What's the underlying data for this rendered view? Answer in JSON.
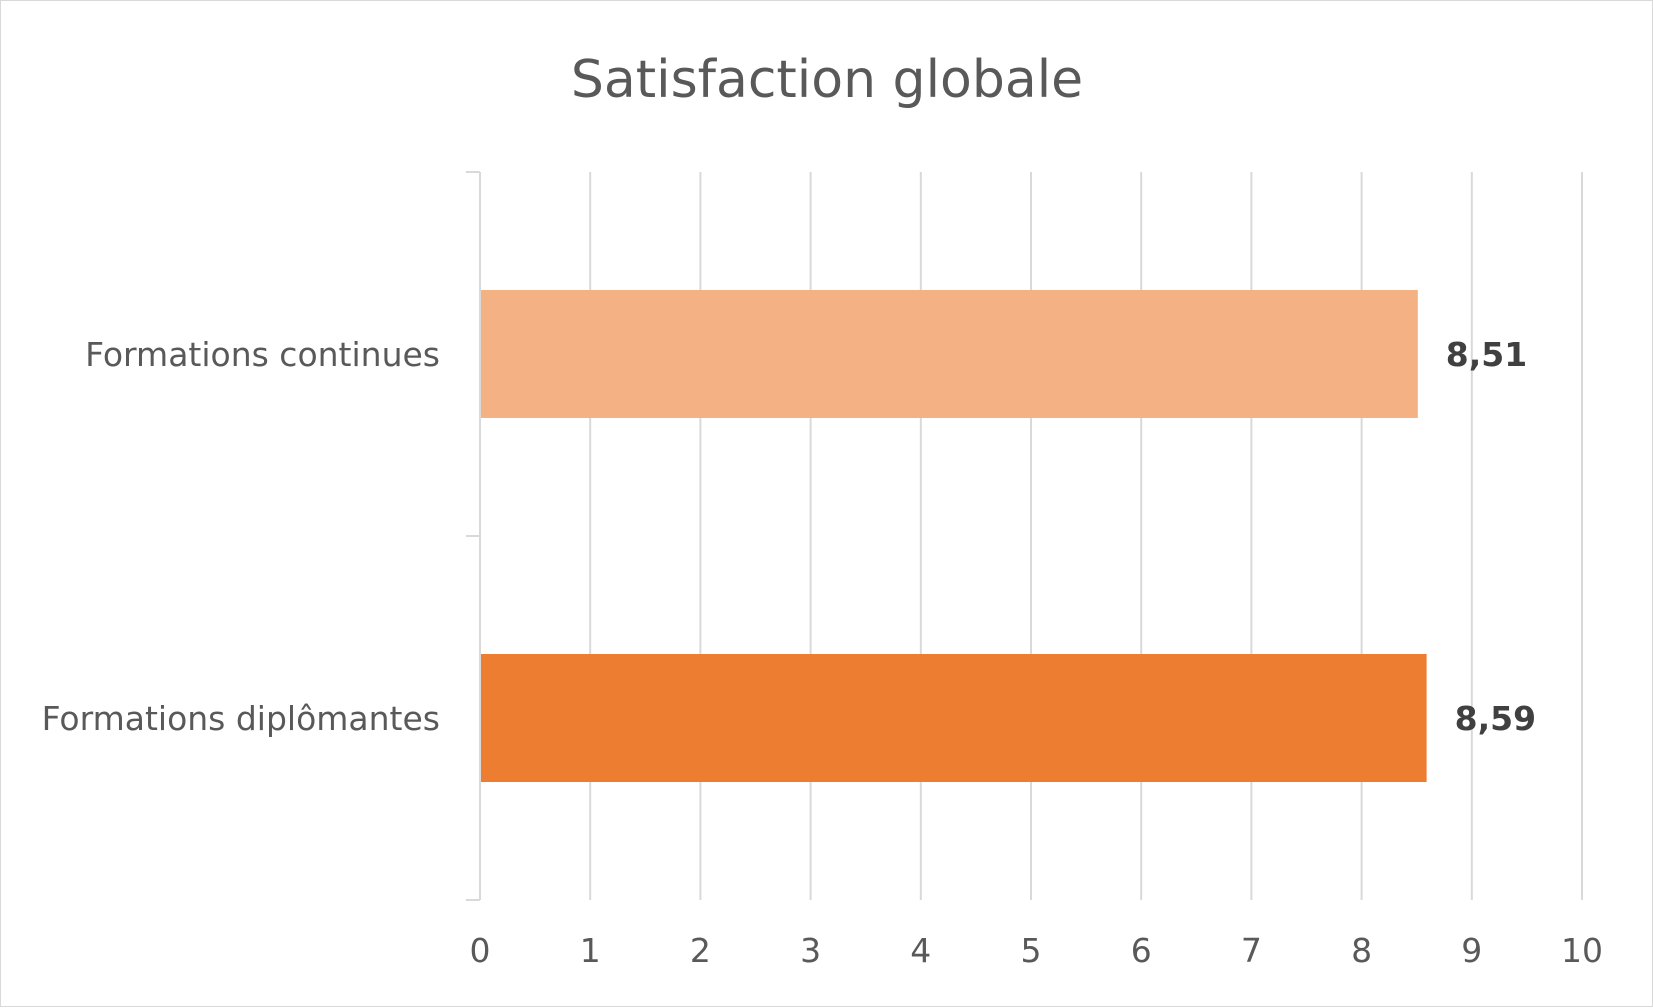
{
  "chart_data": {
    "type": "bar",
    "orientation": "horizontal",
    "title": "Satisfaction globale",
    "categories": [
      "Formations continues",
      "Formations diplômantes"
    ],
    "values": [
      8.51,
      8.59
    ],
    "value_labels": [
      "8,51",
      "8,59"
    ],
    "colors": [
      "#F4B183",
      "#ED7D31"
    ],
    "xlim": [
      0,
      10
    ],
    "x_ticks": [
      "0",
      "1",
      "2",
      "3",
      "4",
      "5",
      "6",
      "7",
      "8",
      "9",
      "10"
    ],
    "grid": "vertical",
    "legend": "none"
  }
}
